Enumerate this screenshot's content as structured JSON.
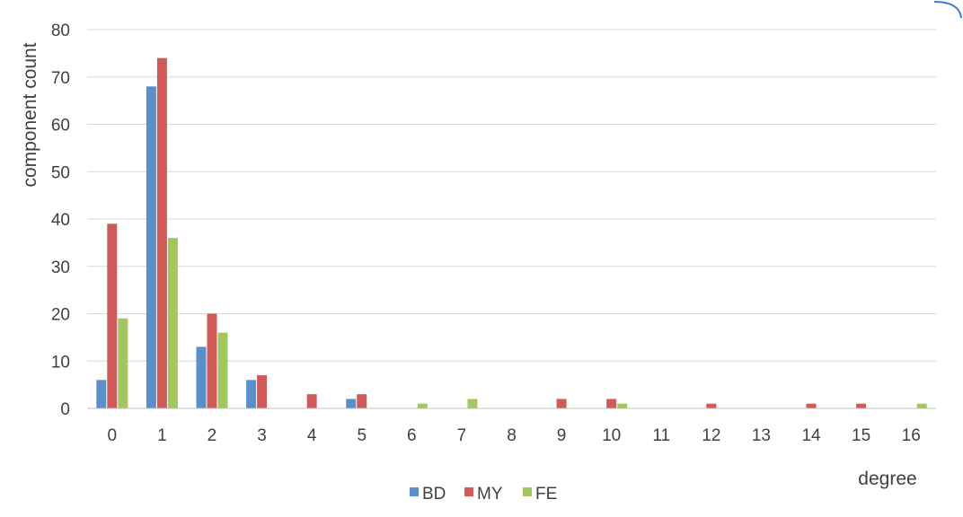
{
  "chart_data": {
    "type": "bar",
    "title": "",
    "xlabel": "degree",
    "ylabel": "component count",
    "ylim": [
      0,
      80
    ],
    "yticks": [
      0,
      10,
      20,
      30,
      40,
      50,
      60,
      70,
      80
    ],
    "grid": true,
    "legend_position": "bottom",
    "categories": [
      "0",
      "1",
      "2",
      "3",
      "4",
      "5",
      "6",
      "7",
      "8",
      "9",
      "10",
      "11",
      "12",
      "13",
      "14",
      "15",
      "16"
    ],
    "series": [
      {
        "name": "BD",
        "color": "#5b8fc9",
        "values": [
          6,
          68,
          13,
          6,
          0,
          2,
          0,
          0,
          0,
          0,
          0,
          0,
          0,
          0,
          0,
          0,
          0
        ]
      },
      {
        "name": "MY",
        "color": "#cf5a57",
        "values": [
          39,
          74,
          20,
          7,
          3,
          3,
          0,
          0,
          0,
          2,
          2,
          0,
          1,
          0,
          1,
          1,
          0
        ]
      },
      {
        "name": "FE",
        "color": "#a4c65f",
        "values": [
          19,
          36,
          16,
          0,
          0,
          0,
          1,
          2,
          0,
          0,
          1,
          0,
          0,
          0,
          0,
          0,
          1
        ]
      }
    ]
  }
}
